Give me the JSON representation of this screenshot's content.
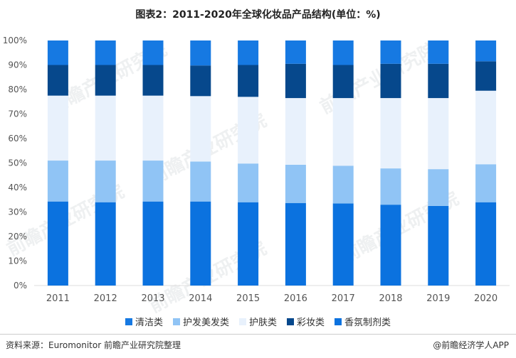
{
  "title": "图表2：2011-2020年全球化妆品产品结构(单位：%)",
  "source": "资料来源：Euromonitor 前瞻产业研究院整理",
  "credit": "@前瞻经济学人APP",
  "watermark": "前瞻产业研究院",
  "colors": {
    "axis_text": "#555555",
    "grid": "#dddddd"
  },
  "chart_data": {
    "type": "bar",
    "stacked": true,
    "categories": [
      "2011",
      "2012",
      "2013",
      "2014",
      "2015",
      "2016",
      "2017",
      "2018",
      "2019",
      "2020"
    ],
    "ylim": [
      0,
      100
    ],
    "yticks": [
      "0%",
      "10%",
      "20%",
      "30%",
      "40%",
      "50%",
      "60%",
      "70%",
      "80%",
      "90%",
      "100%"
    ],
    "legend_position": "bottom",
    "series": [
      {
        "name": "香氛制剂类",
        "color": "#0b72df",
        "values": [
          34.3,
          34.0,
          34.3,
          34.3,
          34.0,
          33.7,
          33.5,
          33.0,
          32.5,
          34.0
        ]
      },
      {
        "name": "护发美发类",
        "color": "#90c4f5",
        "values": [
          16.7,
          17.0,
          16.7,
          16.3,
          15.8,
          15.6,
          15.4,
          14.8,
          15.0,
          15.5
        ]
      },
      {
        "name": "护肤类",
        "color": "#e8f1fc",
        "values": [
          26.5,
          26.5,
          26.5,
          26.7,
          27.2,
          27.2,
          27.6,
          28.7,
          29.0,
          30.0
        ]
      },
      {
        "name": "彩妆类",
        "color": "#06488c",
        "values": [
          12.5,
          12.5,
          12.5,
          12.5,
          13.0,
          14.0,
          13.5,
          14.0,
          14.0,
          12.0
        ]
      },
      {
        "name": "清洁类",
        "color": "#1679e2",
        "values": [
          10.0,
          10.0,
          10.0,
          10.2,
          10.0,
          9.5,
          10.0,
          9.5,
          9.5,
          8.5
        ]
      }
    ],
    "legend_order": [
      "清洁类",
      "护发美发类",
      "护肤类",
      "彩妆类",
      "香氛制剂类"
    ]
  }
}
